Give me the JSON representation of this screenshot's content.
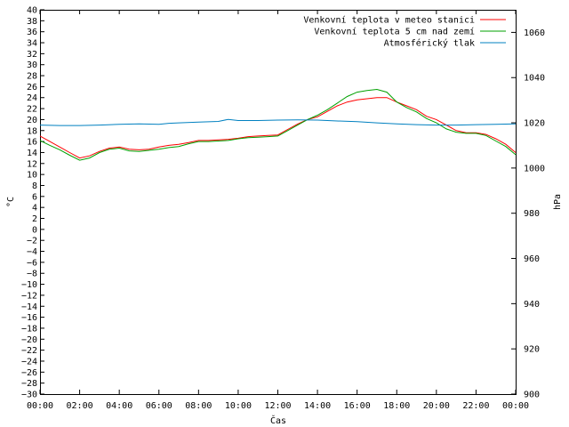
{
  "chart_data": {
    "type": "line",
    "xlabel": "Čas",
    "ylabel_left": "°C",
    "ylabel_right": "hPa",
    "x_ticks": [
      "00:00",
      "02:00",
      "04:00",
      "06:00",
      "08:00",
      "10:00",
      "12:00",
      "14:00",
      "16:00",
      "18:00",
      "20:00",
      "22:00",
      "00:00"
    ],
    "xlim": [
      0,
      24
    ],
    "ylim_left": [
      -30,
      40
    ],
    "ytick_step_left": 2,
    "ylim_right": [
      900,
      1070
    ],
    "yticks_right": [
      900,
      920,
      940,
      960,
      980,
      1000,
      1020,
      1040,
      1060
    ],
    "grid": false,
    "legend_placement": "top-right",
    "series": [
      {
        "name": "Venkovní teplota v meteo stanici",
        "axis": "left",
        "color": "#ff0000",
        "x": [
          0,
          0.5,
          1,
          1.5,
          2,
          2.5,
          3,
          3.5,
          4,
          4.5,
          5,
          5.5,
          6,
          6.5,
          7,
          7.5,
          8,
          8.5,
          9,
          9.5,
          10,
          10.5,
          11,
          11.5,
          12,
          12.5,
          13,
          13.5,
          14,
          14.5,
          15,
          15.5,
          16,
          16.5,
          17,
          17.5,
          18,
          18.5,
          19,
          19.5,
          20,
          20.5,
          21,
          21.5,
          22,
          22.5,
          23,
          23.5,
          24
        ],
        "y": [
          17,
          16,
          15,
          14,
          13,
          13.4,
          14.2,
          14.8,
          15,
          14.6,
          14.5,
          14.6,
          15,
          15.3,
          15.5,
          15.8,
          16.2,
          16.2,
          16.3,
          16.4,
          16.6,
          16.9,
          17,
          17.1,
          17.2,
          18.2,
          19.2,
          20,
          20.5,
          21.5,
          22.5,
          23.2,
          23.6,
          23.8,
          24,
          24,
          23.2,
          22.5,
          21.8,
          20.6,
          20,
          19,
          18,
          17.6,
          17.6,
          17.3,
          16.5,
          15.5,
          14
        ]
      },
      {
        "name": "Venkovní teplota 5 cm nad zemí",
        "axis": "left",
        "color": "#00a000",
        "x": [
          0,
          0.5,
          1,
          1.5,
          2,
          2.5,
          3,
          3.5,
          4,
          4.5,
          5,
          5.5,
          6,
          6.5,
          7,
          7.5,
          8,
          8.5,
          9,
          9.5,
          10,
          10.5,
          11,
          11.5,
          12,
          12.5,
          13,
          13.5,
          14,
          14.5,
          15,
          15.5,
          16,
          16.5,
          17,
          17.5,
          18,
          18.5,
          19,
          19.5,
          20,
          20.5,
          21,
          21.5,
          22,
          22.5,
          23,
          23.5,
          24
        ],
        "y": [
          16.2,
          15.3,
          14.5,
          13.5,
          12.6,
          13,
          14,
          14.6,
          14.8,
          14.3,
          14.2,
          14.4,
          14.6,
          14.9,
          15.1,
          15.6,
          16,
          16,
          16.1,
          16.2,
          16.5,
          16.7,
          16.8,
          16.9,
          17,
          18,
          19,
          20,
          20.8,
          21.8,
          23,
          24.2,
          25,
          25.3,
          25.5,
          25,
          23.2,
          22.2,
          21.4,
          20.2,
          19.4,
          18.3,
          17.7,
          17.5,
          17.5,
          17.1,
          16.1,
          15.1,
          13.6
        ]
      },
      {
        "name": "Atmosférický tlak",
        "axis": "right",
        "color": "#0080c0",
        "x": [
          0,
          1,
          2,
          3,
          4,
          5,
          6,
          6.5,
          7,
          8,
          9,
          9.5,
          10,
          11,
          12,
          13,
          14,
          15,
          16,
          17,
          18,
          19,
          20,
          21,
          22,
          23,
          24
        ],
        "y": [
          1019,
          1018.8,
          1018.8,
          1019,
          1019.3,
          1019.5,
          1019.3,
          1019.8,
          1020,
          1020.3,
          1020.6,
          1021.5,
          1021,
          1021,
          1021.2,
          1021.3,
          1021.2,
          1020.8,
          1020.5,
          1020,
          1019.5,
          1019.2,
          1019,
          1019,
          1019.2,
          1019.3,
          1019.5
        ]
      }
    ]
  }
}
